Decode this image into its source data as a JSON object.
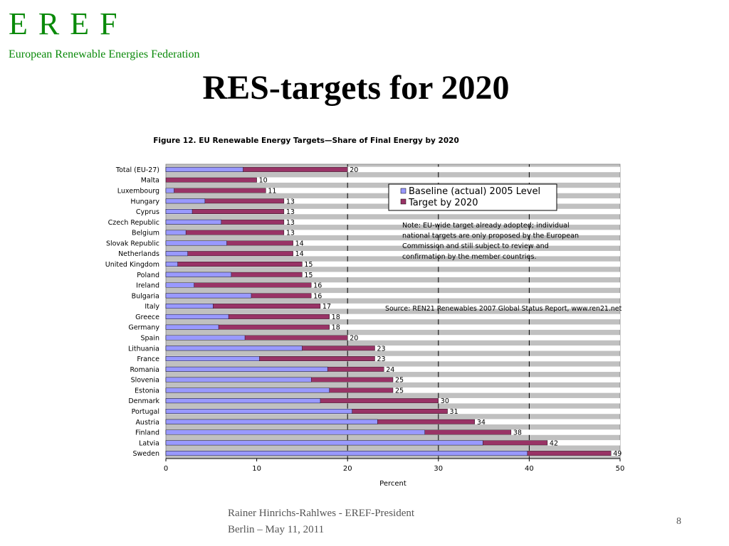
{
  "slide": {
    "logo": "E R E F",
    "organization": "European Renewable Energies Federation",
    "title": "RES-targets for 2020",
    "footer_line1": "Rainer Hinrichs-Rahlwes  - EREF-President",
    "footer_line2": "Berlin – May 11, 2011",
    "page_number": "8"
  },
  "colors": {
    "baseline": "#9999ff",
    "target": "#993366",
    "plot_bg": "#c0c0c0",
    "logo": "#0a8a0a"
  },
  "chart_data": {
    "type": "bar",
    "orientation": "horizontal",
    "stacked_overlay": true,
    "title": "Figure 12. EU Renewable Energy Targets—Share of Final Energy by 2020",
    "xlabel": "Percent",
    "ylabel": "",
    "xlim": [
      0,
      50
    ],
    "x_ticks": [
      0,
      10,
      20,
      30,
      40,
      50
    ],
    "gridlines": [
      20,
      30,
      40
    ],
    "legend_position": "top-right",
    "categories": [
      "Total (EU-27)",
      "Malta",
      "Luxembourg",
      "Hungary",
      "Cyprus",
      "Czech Republic",
      "Belgium",
      "Slovak Republic",
      "Netherlands",
      "United Kingdom",
      "Poland",
      "Ireland",
      "Bulgaria",
      "Italy",
      "Greece",
      "Germany",
      "Spain",
      "Lithuania",
      "France",
      "Romania",
      "Slovenia",
      "Estonia",
      "Denmark",
      "Portugal",
      "Austria",
      "Finland",
      "Latvia",
      "Sweden"
    ],
    "series": [
      {
        "name": "Baseline (actual) 2005 Level",
        "values": [
          8.5,
          0,
          0.9,
          4.3,
          2.9,
          6.1,
          2.2,
          6.7,
          2.4,
          1.3,
          7.2,
          3.1,
          9.4,
          5.2,
          6.9,
          5.8,
          8.7,
          15.0,
          10.3,
          17.8,
          16.0,
          18.0,
          17.0,
          20.5,
          23.3,
          28.5,
          34.9,
          39.8
        ]
      },
      {
        "name": "Target by 2020",
        "values": [
          20,
          10,
          11,
          13,
          13,
          13,
          13,
          14,
          14,
          15,
          15,
          16,
          16,
          17,
          18,
          18,
          20,
          23,
          23,
          24,
          25,
          25,
          30,
          31,
          34,
          38,
          42,
          49
        ]
      }
    ],
    "data_labels": [
      "20",
      "10",
      "11",
      "13",
      "13",
      "13",
      "13",
      "14",
      "14",
      "15",
      "15",
      "16",
      "16",
      "17",
      "18",
      "18",
      "20",
      "23",
      "23",
      "24",
      "25",
      "25",
      "30",
      "31",
      "34",
      "38",
      "42",
      "49"
    ],
    "annotations": {
      "note": [
        "Note: EU-wide target already adopted; individual",
        "national targets are only proposed by the European",
        "Commission and still subject to review and",
        "confirmation by the member countries."
      ],
      "source": "Source: REN21 Renewables 2007 Global Status Report, www.ren21.net"
    }
  }
}
